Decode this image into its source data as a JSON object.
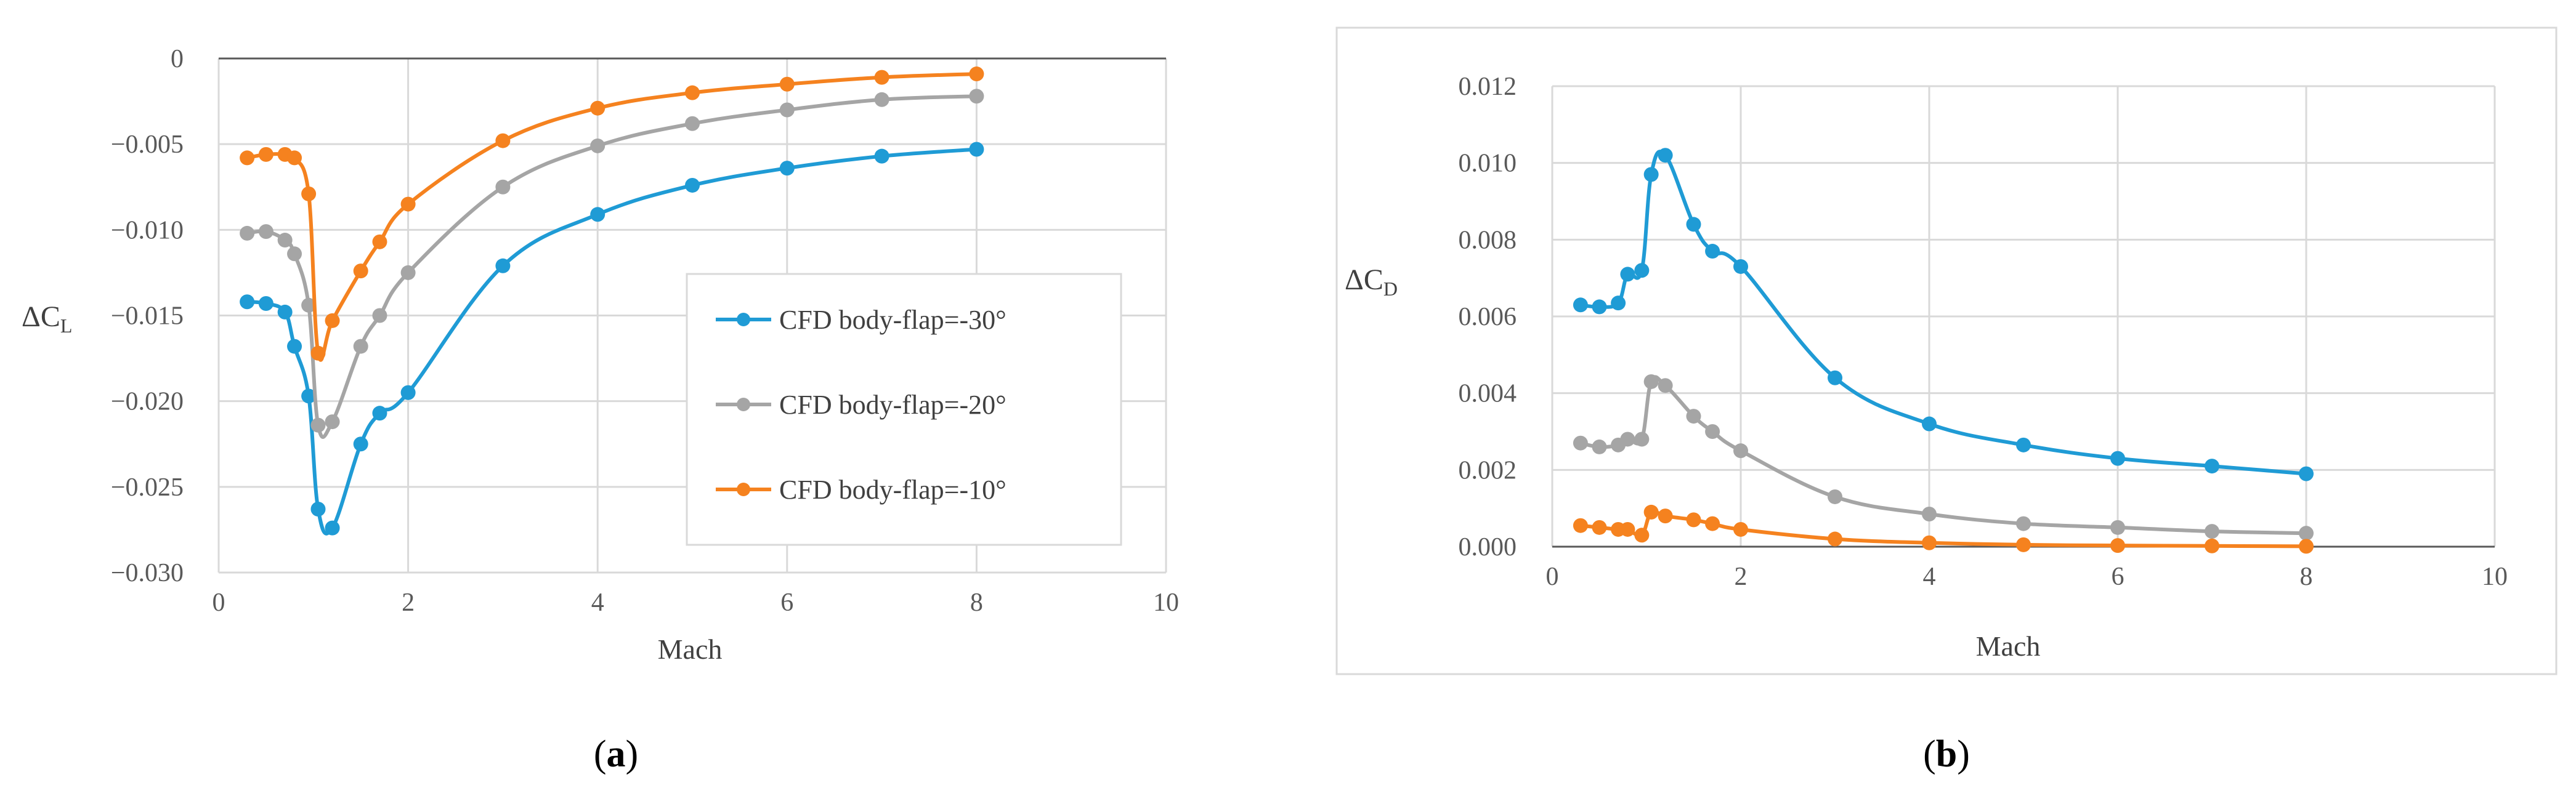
{
  "colors": {
    "blue": "#1f9bd5",
    "gray": "#a5a5a5",
    "orange": "#f5821f",
    "grid": "#d9d9d9",
    "axis": "#595959",
    "box": "#d9d9d9"
  },
  "chart_data": [
    {
      "type": "line",
      "panel_label_open": "(",
      "panel_label": "a",
      "panel_label_close": ")",
      "xlabel": "Mach",
      "ylabel_main": "ΔC",
      "ylabel_sub": "L",
      "xlim": [
        0,
        10
      ],
      "ylim": [
        -0.03,
        0
      ],
      "xticks": [
        0,
        2,
        4,
        6,
        8,
        10
      ],
      "xtick_labels": [
        "0",
        "2",
        "4",
        "6",
        "8",
        "10"
      ],
      "yticks": [
        0,
        -0.005,
        -0.01,
        -0.015,
        -0.02,
        -0.025,
        -0.03
      ],
      "ytick_labels": [
        "0",
        "−0.005",
        "−0.010",
        "−0.015",
        "−0.020",
        "−0.025",
        "−0.030"
      ],
      "legend_position": "center-right",
      "series": [
        {
          "name": "CFD body-flap=-30°",
          "color_key": "blue",
          "x": [
            0.3,
            0.5,
            0.7,
            0.8,
            0.95,
            1.05,
            1.2,
            1.5,
            1.7,
            2,
            3,
            4,
            5,
            6,
            7,
            8
          ],
          "y": [
            -0.0142,
            -0.0143,
            -0.0148,
            -0.0168,
            -0.0197,
            -0.0263,
            -0.0274,
            -0.0225,
            -0.0207,
            -0.0195,
            -0.0121,
            -0.0091,
            -0.0074,
            -0.0064,
            -0.0057,
            -0.0053
          ]
        },
        {
          "name": "CFD body-flap=-20°",
          "color_key": "gray",
          "x": [
            0.3,
            0.5,
            0.7,
            0.8,
            0.95,
            1.05,
            1.2,
            1.5,
            1.7,
            2,
            3,
            4,
            5,
            6,
            7,
            8
          ],
          "y": [
            -0.0102,
            -0.0101,
            -0.0106,
            -0.0114,
            -0.0144,
            -0.0214,
            -0.0212,
            -0.0168,
            -0.015,
            -0.0125,
            -0.0075,
            -0.0051,
            -0.0038,
            -0.003,
            -0.0024,
            -0.0022
          ]
        },
        {
          "name": "CFD body-flap=-10°",
          "color_key": "orange",
          "x": [
            0.3,
            0.5,
            0.7,
            0.8,
            0.95,
            1.05,
            1.2,
            1.5,
            1.7,
            2,
            3,
            4,
            5,
            6,
            7,
            8
          ],
          "y": [
            -0.0058,
            -0.0056,
            -0.0056,
            -0.0058,
            -0.0079,
            -0.0172,
            -0.0153,
            -0.0124,
            -0.0107,
            -0.0085,
            -0.0048,
            -0.0029,
            -0.002,
            -0.0015,
            -0.0011,
            -0.0009
          ]
        }
      ]
    },
    {
      "type": "line",
      "panel_label_open": "(",
      "panel_label": "b",
      "panel_label_close": ")",
      "xlabel": "Mach",
      "ylabel_main": "ΔC",
      "ylabel_sub": "D",
      "xlim": [
        0,
        10
      ],
      "ylim": [
        0,
        0.012
      ],
      "xticks": [
        0,
        2,
        4,
        6,
        8,
        10
      ],
      "xtick_labels": [
        "0",
        "2",
        "4",
        "6",
        "8",
        "10"
      ],
      "yticks": [
        0,
        0.002,
        0.004,
        0.006,
        0.008,
        0.01,
        0.012
      ],
      "ytick_labels": [
        "0.000",
        "0.002",
        "0.004",
        "0.006",
        "0.008",
        "0.010",
        "0.012"
      ],
      "series": [
        {
          "name": "CFD body-flap=-30°",
          "color_key": "blue",
          "x": [
            0.3,
            0.5,
            0.7,
            0.8,
            0.95,
            1.05,
            1.2,
            1.5,
            1.7,
            2,
            3,
            4,
            5,
            6,
            7,
            8
          ],
          "y": [
            0.0063,
            0.00625,
            0.00635,
            0.0071,
            0.0072,
            0.0097,
            0.0102,
            0.0084,
            0.0077,
            0.0073,
            0.0044,
            0.0032,
            0.00265,
            0.0023,
            0.0021,
            0.0019
          ]
        },
        {
          "name": "CFD body-flap=-20°",
          "color_key": "gray",
          "x": [
            0.3,
            0.5,
            0.7,
            0.8,
            0.95,
            1.05,
            1.2,
            1.5,
            1.7,
            2,
            3,
            4,
            5,
            6,
            7,
            8
          ],
          "y": [
            0.0027,
            0.0026,
            0.00265,
            0.0028,
            0.0028,
            0.0043,
            0.0042,
            0.0034,
            0.003,
            0.0025,
            0.0013,
            0.00085,
            0.0006,
            0.0005,
            0.0004,
            0.00035
          ]
        },
        {
          "name": "CFD body-flap=-10°",
          "color_key": "orange",
          "x": [
            0.3,
            0.5,
            0.7,
            0.8,
            0.95,
            1.05,
            1.2,
            1.5,
            1.7,
            2,
            3,
            4,
            5,
            6,
            7,
            8
          ],
          "y": [
            0.00055,
            0.0005,
            0.00045,
            0.00045,
            0.0003,
            0.0009,
            0.0008,
            0.0007,
            0.0006,
            0.00045,
            0.0002,
            0.0001,
            5e-05,
            3e-05,
            2e-05,
            1e-05
          ]
        }
      ]
    }
  ]
}
